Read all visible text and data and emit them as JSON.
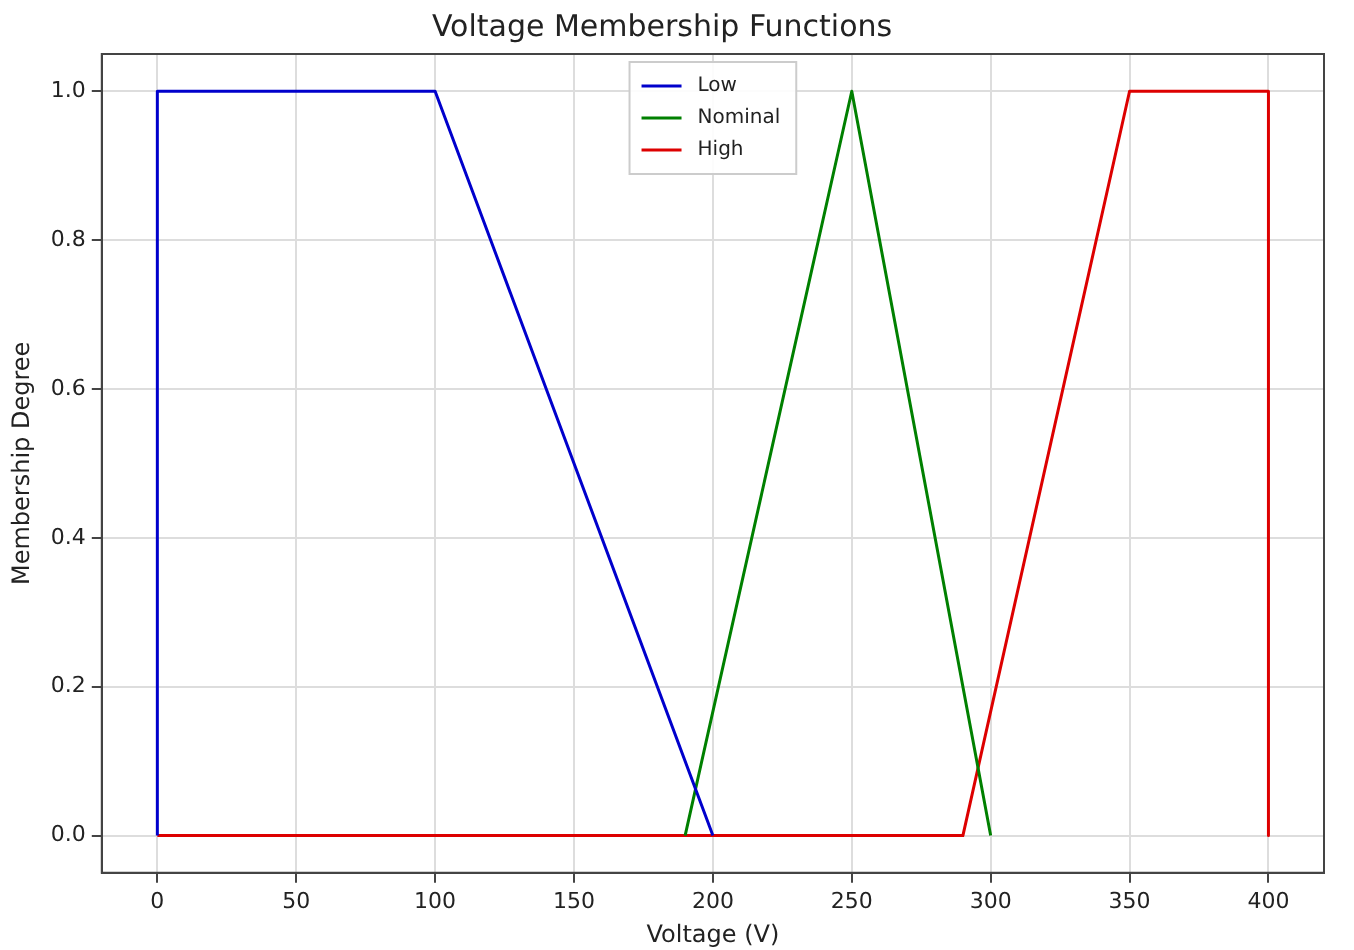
{
  "chart_data": {
    "type": "line",
    "title": "Voltage Membership Functions",
    "xlabel": "Voltage (V)",
    "ylabel": "Membership Degree",
    "series": [
      {
        "name": "Low",
        "color": "#0000cc",
        "x": [
          0,
          0,
          100,
          200
        ],
        "values": [
          0,
          1,
          1,
          0
        ]
      },
      {
        "name": "Nominal",
        "color": "#008000",
        "x": [
          190,
          250,
          300
        ],
        "values": [
          0,
          1,
          0
        ]
      },
      {
        "name": "High",
        "color": "#dd0000",
        "x": [
          0,
          290,
          350,
          400,
          400
        ],
        "values": [
          0,
          0,
          1,
          1,
          0
        ]
      }
    ],
    "xlim": [
      -20,
      420
    ],
    "xticks": [
      0,
      50,
      100,
      150,
      200,
      250,
      300,
      350,
      400
    ],
    "ylim": [
      -0.05,
      1.05
    ],
    "yticks": [
      {
        "value": 0,
        "label": "0.0"
      },
      0.2,
      0.4,
      0.6,
      0.8,
      {
        "value": 1,
        "label": "1.0"
      }
    ],
    "grid": true,
    "legend": "top",
    "marker": "none",
    "line_style": "solid"
  }
}
